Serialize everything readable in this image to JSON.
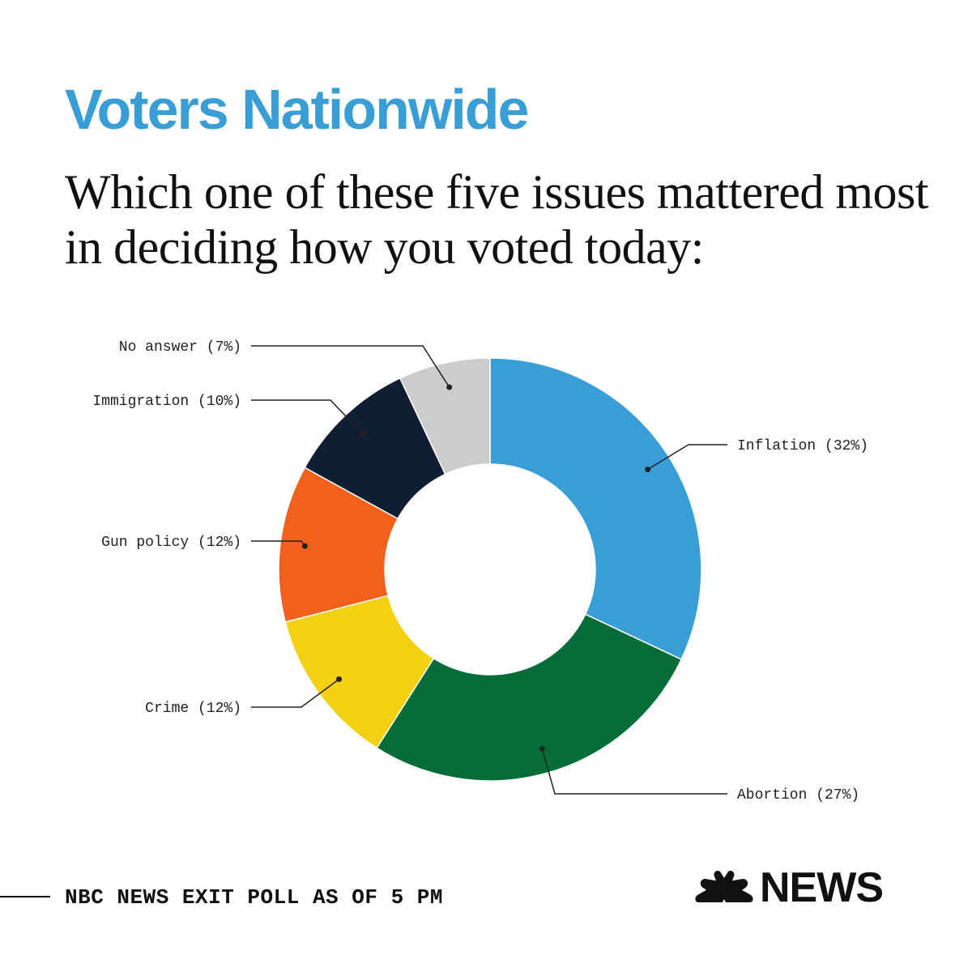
{
  "header": {
    "title": "Voters Nationwide",
    "subtitle": "Which one of these five issues mattered most in deciding how you voted today:"
  },
  "footer": {
    "source": "NBC NEWS EXIT POLL AS OF 5 PM",
    "logo_text": "NEWS"
  },
  "chart_data": {
    "type": "pie",
    "variant": "donut",
    "slices": [
      {
        "label": "Inflation (32%)",
        "value": 32,
        "color": "#3a9ed6"
      },
      {
        "label": "Abortion (27%)",
        "value": 27,
        "color": "#066d38"
      },
      {
        "label": "Crime (12%)",
        "value": 12,
        "color": "#f4d012"
      },
      {
        "label": "Gun policy (12%)",
        "value": 12,
        "color": "#f2601c"
      },
      {
        "label": "Immigration (10%)",
        "value": 10,
        "color": "#101e33"
      },
      {
        "label": "No answer (7%)",
        "value": 7,
        "color": "#cccccc"
      }
    ]
  }
}
